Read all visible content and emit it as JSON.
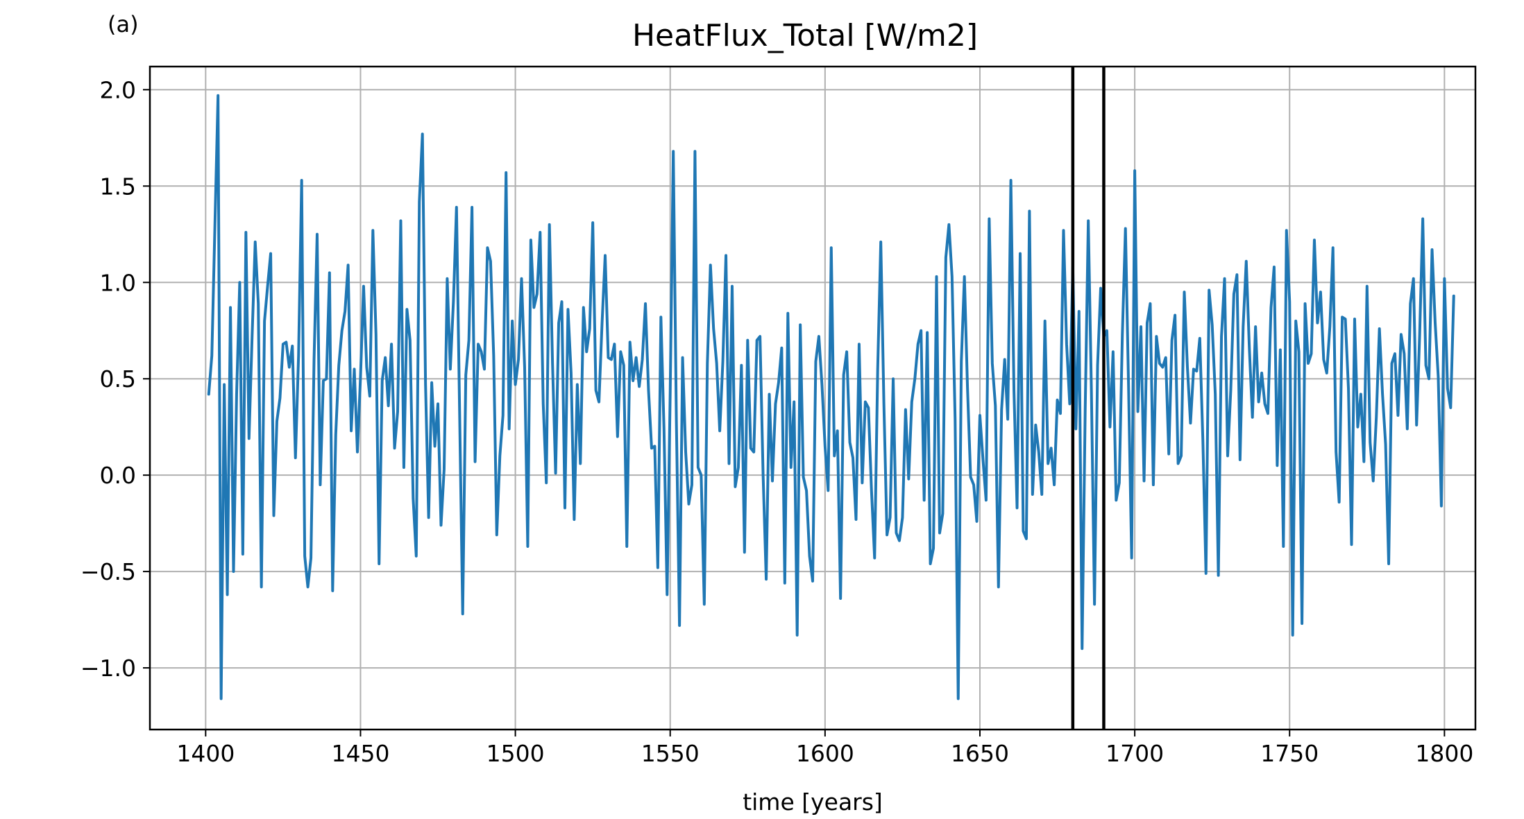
{
  "panel_label": "(a)",
  "chart_data": {
    "type": "line",
    "title": "HeatFlux_Total [W/m2]",
    "xlabel": "time [years]",
    "ylabel": "",
    "xlim": [
      1382,
      1810
    ],
    "ylim": [
      -1.32,
      2.12
    ],
    "grid": true,
    "x_ticks": [
      1400,
      1450,
      1500,
      1550,
      1600,
      1650,
      1700,
      1750,
      1800
    ],
    "y_ticks": [
      -1.0,
      -0.5,
      0.0,
      0.5,
      1.0,
      1.5,
      2.0
    ],
    "x_tick_labels": [
      "1400",
      "1450",
      "1500",
      "1550",
      "1600",
      "1650",
      "1700",
      "1750",
      "1800"
    ],
    "y_tick_labels": [
      "−1.0",
      "−0.5",
      "0.0",
      "0.5",
      "1.0",
      "1.5",
      "2.0"
    ],
    "series": [
      {
        "name": "",
        "color": "#1f77b4",
        "x_start": 1401,
        "x_step": 1,
        "values": [
          0.42,
          0.62,
          1.3,
          1.97,
          -1.16,
          0.47,
          -0.62,
          0.87,
          -0.5,
          0.42,
          1.0,
          -0.41,
          1.26,
          0.19,
          0.72,
          1.21,
          0.89,
          -0.58,
          0.8,
          0.98,
          1.15,
          -0.21,
          0.28,
          0.4,
          0.68,
          0.69,
          0.56,
          0.67,
          0.09,
          0.62,
          1.53,
          -0.42,
          -0.58,
          -0.43,
          0.6,
          1.25,
          -0.05,
          0.49,
          0.5,
          1.05,
          -0.6,
          0.21,
          0.57,
          0.75,
          0.85,
          1.09,
          0.23,
          0.55,
          0.12,
          0.51,
          0.98,
          0.56,
          0.41,
          1.27,
          0.73,
          -0.46,
          0.49,
          0.61,
          0.36,
          0.68,
          0.14,
          0.33,
          1.32,
          0.04,
          0.86,
          0.7,
          -0.12,
          -0.42,
          1.42,
          1.77,
          0.47,
          -0.22,
          0.48,
          0.15,
          0.37,
          -0.26,
          0.03,
          1.02,
          0.55,
          0.9,
          1.39,
          0.33,
          -0.72,
          0.52,
          0.7,
          1.39,
          0.07,
          0.68,
          0.64,
          0.55,
          1.18,
          1.11,
          0.62,
          -0.31,
          0.1,
          0.31,
          1.57,
          0.24,
          0.8,
          0.47,
          0.6,
          1.02,
          0.56,
          -0.37,
          1.22,
          0.87,
          0.94,
          1.26,
          0.37,
          -0.04,
          1.3,
          0.58,
          0.01,
          0.79,
          0.9,
          -0.17,
          0.86,
          0.53,
          -0.23,
          0.47,
          0.06,
          0.87,
          0.64,
          0.76,
          1.31,
          0.44,
          0.38,
          0.79,
          1.14,
          0.61,
          0.6,
          0.68,
          0.2,
          0.64,
          0.57,
          -0.37,
          0.69,
          0.49,
          0.61,
          0.46,
          0.6,
          0.89,
          0.44,
          0.14,
          0.15,
          -0.48,
          0.82,
          0.24,
          -0.62,
          0.43,
          1.68,
          0.28,
          -0.78,
          0.61,
          0.12,
          -0.15,
          -0.05,
          1.68,
          0.04,
          0.0,
          -0.67,
          0.58,
          1.09,
          0.76,
          0.58,
          0.23,
          0.59,
          1.14,
          0.06,
          0.98,
          -0.06,
          0.04,
          0.57,
          -0.4,
          0.7,
          0.14,
          0.12,
          0.7,
          0.72,
          0.0,
          -0.54,
          0.42,
          -0.03,
          0.37,
          0.48,
          0.66,
          -0.56,
          0.84,
          0.04,
          0.38,
          -0.83,
          0.78,
          -0.01,
          -0.08,
          -0.42,
          -0.55,
          0.59,
          0.72,
          0.47,
          0.15,
          -0.08,
          1.18,
          0.1,
          0.23,
          -0.64,
          0.52,
          0.64,
          0.17,
          0.09,
          -0.23,
          0.68,
          -0.04,
          0.38,
          0.35,
          -0.08,
          -0.43,
          0.55,
          1.21,
          0.37,
          -0.31,
          -0.22,
          0.5,
          -0.3,
          -0.34,
          -0.22,
          0.34,
          -0.02,
          0.38,
          0.5,
          0.68,
          0.75,
          -0.13,
          0.74,
          -0.46,
          -0.38,
          1.03,
          -0.3,
          -0.2,
          1.13,
          1.3,
          1.03,
          0.29,
          -1.16,
          0.59,
          1.03,
          0.45,
          -0.01,
          -0.05,
          -0.24,
          0.31,
          0.08,
          -0.13,
          1.33,
          0.58,
          0.36,
          -0.58,
          0.34,
          0.6,
          0.29,
          1.53,
          0.44,
          -0.17,
          1.15,
          -0.29,
          -0.33,
          1.37,
          -0.1,
          0.26,
          0.12,
          -0.1,
          0.8,
          0.06,
          0.14,
          -0.05,
          0.39,
          0.32,
          1.27,
          0.68,
          0.37,
          1.08,
          0.24,
          0.85,
          -0.9,
          0.34,
          1.32,
          0.44,
          -0.67,
          0.57,
          0.97,
          0.72,
          0.75,
          0.25,
          0.64,
          -0.13,
          -0.04,
          0.73,
          1.28,
          0.46,
          -0.43,
          1.58,
          0.33,
          0.77,
          -0.03,
          0.79,
          0.89,
          -0.05,
          0.72,
          0.58,
          0.56,
          0.61,
          0.11,
          0.7,
          0.83,
          0.06,
          0.1,
          0.95,
          0.56,
          0.27,
          0.55,
          0.54,
          0.71,
          0.18,
          -0.51,
          0.96,
          0.78,
          0.42,
          -0.52,
          0.72,
          1.02,
          0.1,
          0.44,
          0.94,
          1.04,
          0.08,
          0.77,
          1.11,
          0.66,
          0.3,
          0.77,
          0.38,
          0.53,
          0.37,
          0.32,
          0.87,
          1.08,
          0.05,
          0.65,
          -0.37,
          1.27,
          0.9,
          -0.83,
          0.8,
          0.64,
          -0.77,
          0.89,
          0.58,
          0.63,
          1.22,
          0.79,
          0.95,
          0.6,
          0.53,
          0.77,
          1.18,
          0.12,
          -0.14,
          0.82,
          0.81,
          0.45,
          -0.36,
          0.81,
          0.25,
          0.42,
          0.07,
          0.98,
          0.17,
          -0.03,
          0.3,
          0.76,
          0.42,
          0.16,
          -0.46,
          0.58,
          0.63,
          0.31,
          0.73,
          0.63,
          0.24,
          0.89,
          1.02,
          0.26,
          0.73,
          1.33,
          0.57,
          0.5,
          1.17,
          0.79,
          0.51,
          -0.16,
          1.02,
          0.45,
          0.35,
          0.93
        ]
      }
    ],
    "vertical_lines": [
      {
        "x": 1680,
        "color": "#000000"
      },
      {
        "x": 1690,
        "color": "#000000"
      }
    ]
  }
}
